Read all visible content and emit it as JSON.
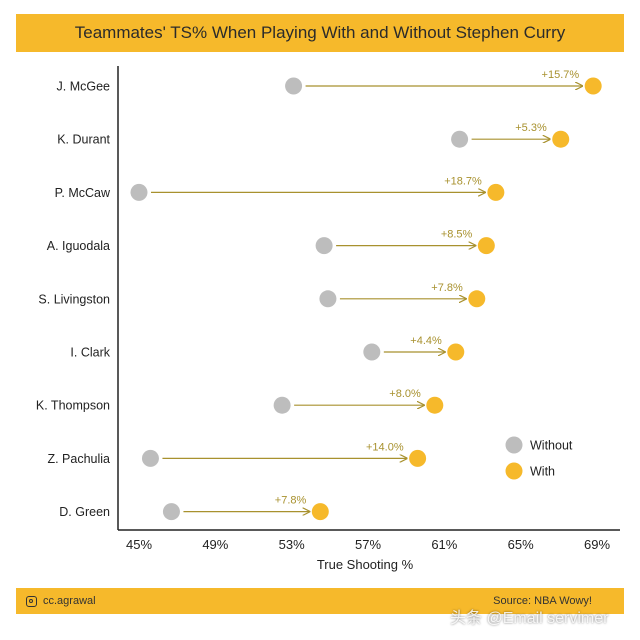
{
  "title": "Teammates' TS% When Playing With and Without Stephen Curry",
  "footer": {
    "handle": "cc.agrawal",
    "handle_icon": "instagram-icon",
    "source": "Source: NBA Wowy!"
  },
  "watermark": "头条 @Email servimer",
  "colors": {
    "without": "#bdbdbd",
    "with": "#f6b92b",
    "label": "#a8912e",
    "arrow": "#a8912e",
    "axis": "#222222"
  },
  "chart_data": {
    "type": "dumbbell",
    "title": "Teammates' TS% When Playing With and Without Stephen Curry",
    "xlabel": "True Shooting %",
    "ylabel": "",
    "xlim": [
      44,
      70
    ],
    "xticks": [
      45,
      49,
      53,
      57,
      61,
      65,
      69
    ],
    "xtick_labels": [
      "45%",
      "49%",
      "53%",
      "57%",
      "61%",
      "65%",
      "69%"
    ],
    "categories": [
      "J. McGee",
      "K. Durant",
      "P. McCaw",
      "A. Iguodala",
      "S. Livingston",
      "I. Clark",
      "K. Thompson",
      "Z. Pachulia",
      "D. Green"
    ],
    "series": [
      {
        "name": "Without",
        "values": [
          53.1,
          61.8,
          45.0,
          54.7,
          54.9,
          57.2,
          52.5,
          45.6,
          46.7
        ]
      },
      {
        "name": "With",
        "values": [
          68.8,
          67.1,
          63.7,
          63.2,
          62.7,
          61.6,
          60.5,
          59.6,
          54.5
        ]
      }
    ],
    "diff_labels": [
      "+15.7%",
      "+5.3%",
      "+18.7%",
      "+8.5%",
      "+7.8%",
      "+4.4%",
      "+8.0%",
      "+14.0%",
      "+7.8%"
    ],
    "legend": {
      "placement": "right",
      "entries": [
        "Without",
        "With"
      ]
    },
    "grid": false
  }
}
